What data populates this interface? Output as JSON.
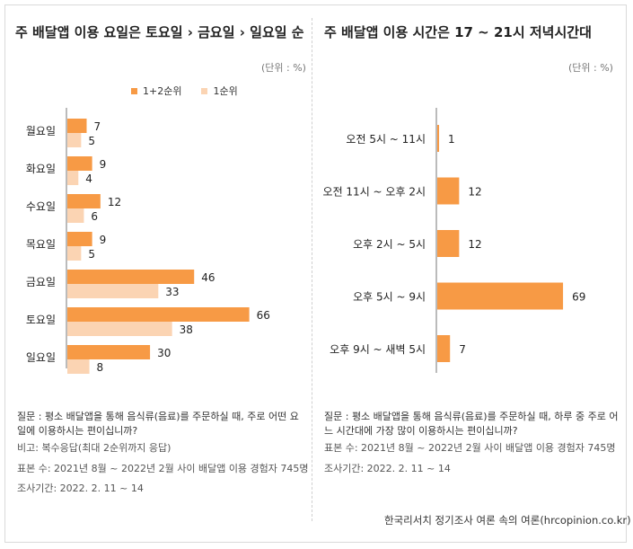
{
  "left": {
    "title": "주 배달앱 이용 요일은 토요일 › 금요일 › 일요일 순",
    "unit": "(단위 : %)",
    "legend": [
      {
        "label": "1+2순위",
        "color": "#f79a45"
      },
      {
        "label": "1순위",
        "color": "#fbd4b3"
      }
    ],
    "notes": {
      "question": "질문 : 평소 배달앱을 통해 음식류(음료)를 주문하실 때, 주로 어떤 요일에 이용하시는 편이십니까?",
      "remark": "비고: 복수응답(최대 2순위까지 응답)",
      "sample": "표본 수: 2021년 8월 ~ 2022년 2월 사이 배달앱  이용 경험자 745명",
      "period": "조사기간: 2022. 2. 11 ~ 14"
    }
  },
  "right": {
    "title": "주 배달앱 이용 시간은 17 ~ 21시 저녁시간대",
    "unit": "(단위 : %)",
    "notes": {
      "question": "질문 : 평소 배달앱을 통해 음식류(음료)를 주문하실 때, 하루 중 주로 어느 시간대에 가장 많이 이용하시는 편이십니까?",
      "sample": "표본 수: 2021년 8월 ~ 2022년 2월 사이 배달앱  이용 경험자 745명",
      "period": "조사기간: 2022. 2. 11 ~ 14"
    },
    "source": "한국리서치 정기조사 여론 속의 여론(hrcopinion.co.kr)"
  },
  "chart_data": [
    {
      "type": "bar",
      "orientation": "horizontal",
      "categories": [
        "월요일",
        "화요일",
        "수요일",
        "목요일",
        "금요일",
        "토요일",
        "일요일"
      ],
      "series": [
        {
          "name": "1+2순위",
          "values": [
            7,
            9,
            12,
            9,
            46,
            66,
            30
          ],
          "color": "#f79a45"
        },
        {
          "name": "1순위",
          "values": [
            5,
            4,
            6,
            5,
            33,
            38,
            8
          ],
          "color": "#fbd4b3"
        }
      ],
      "title": "주 배달앱 이용 요일은 토요일 › 금요일 › 일요일 순",
      "legend_position": "top-right"
    },
    {
      "type": "bar",
      "orientation": "horizontal",
      "categories": [
        "오전 5시 ~ 11시",
        "오전 11시 ~ 오후 2시",
        "오후 2시 ~ 5시",
        "오후 5시 ~ 9시",
        "오후 9시 ~ 새벽 5시"
      ],
      "values": [
        1,
        12,
        12,
        69,
        7
      ],
      "color": "#f79a45",
      "title": "주 배달앱 이용 시간은 17 ~ 21시 저녁시간대"
    }
  ]
}
